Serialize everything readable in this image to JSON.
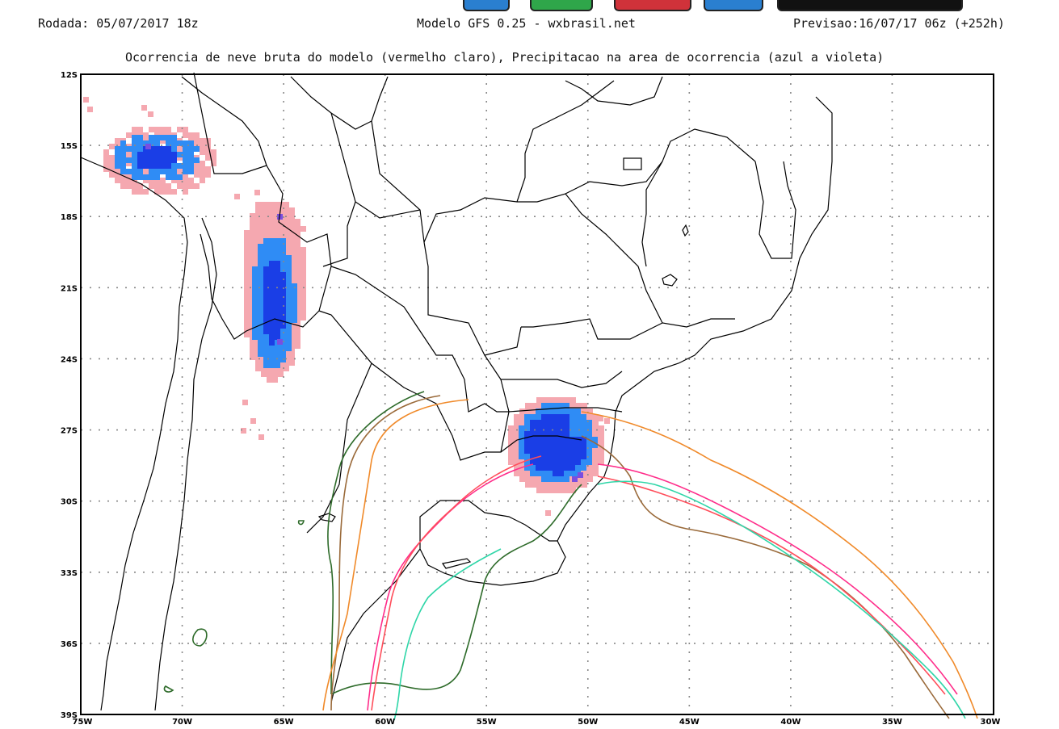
{
  "header": {
    "left": "Rodada: 05/07/2017 18z",
    "center": "Modelo GFS 0.25 - wxbrasil.net",
    "right": "Previsao:16/07/17 06z (+252h)",
    "subtitle": "Ocorrencia de neve bruta do modelo (vermelho claro), Precipitacao na area de ocorrencia (azul a violeta)"
  },
  "toolbar_colors": [
    "#2a7fd0",
    "#2fa64a",
    "#d0323a",
    "#2a7fd0",
    "#111111"
  ],
  "axes": {
    "lon_labels": [
      "75W",
      "70W",
      "65W",
      "60W",
      "55W",
      "50W",
      "45W",
      "40W",
      "35W",
      "30W"
    ],
    "lat_labels": [
      "12S",
      "15S",
      "18S",
      "21S",
      "24S",
      "27S",
      "30S",
      "33S",
      "36S",
      "39S"
    ],
    "lon_range": [
      -75,
      -30
    ],
    "lat_range": [
      -39,
      -12
    ],
    "grid": "dotted"
  },
  "colors": {
    "snow": "#f5a8b0",
    "precip_light": "#2f8cf5",
    "precip_mid": "#1a3ee6",
    "precip_violet": "#7a4ee0",
    "contour_darkgreen": "#2e6b2a",
    "contour_brown": "#9a6a3a",
    "contour_orange": "#f08a2a",
    "contour_pink": "#ff2d8a",
    "contour_red": "#ff4d5a",
    "contour_teal": "#2fd6a8"
  }
}
